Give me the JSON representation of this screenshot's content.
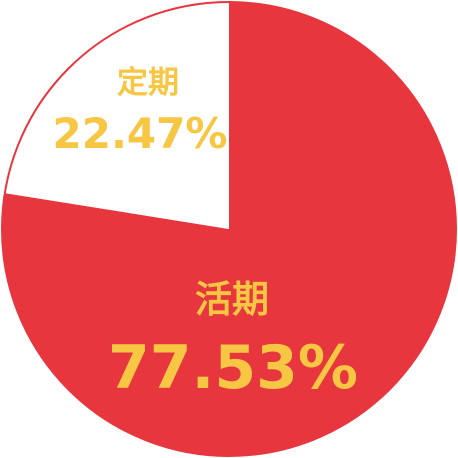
{
  "chart_data": {
    "type": "pie",
    "slices": [
      {
        "name": "活期",
        "value": 77.53,
        "value_label": "77.53%",
        "color": "#e8363e",
        "label_color": "#f7c744"
      },
      {
        "name": "定期",
        "value": 22.47,
        "value_label": "22.47%",
        "color": "#ffffff",
        "label_color": "#f7c744"
      }
    ],
    "start": "12 o'clock",
    "direction": "clockwise",
    "outline_color": "#e8363e",
    "legend": "none"
  }
}
